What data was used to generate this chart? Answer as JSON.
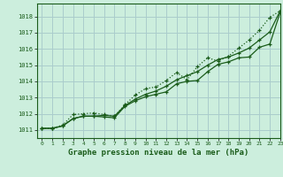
{
  "title": "Graphe pression niveau de la mer (hPa)",
  "bg_color": "#cceedd",
  "grid_color": "#aacccc",
  "line_color": "#1a5c1a",
  "xlim": [
    -0.5,
    23
  ],
  "ylim": [
    1010.5,
    1018.8
  ],
  "yticks": [
    1011,
    1012,
    1013,
    1014,
    1015,
    1016,
    1017,
    1018
  ],
  "xticks": [
    0,
    1,
    2,
    3,
    4,
    5,
    6,
    7,
    8,
    9,
    10,
    11,
    12,
    13,
    14,
    15,
    16,
    17,
    18,
    19,
    20,
    21,
    22,
    23
  ],
  "series1_x": [
    0,
    1,
    2,
    3,
    4,
    5,
    6,
    7,
    8,
    9,
    10,
    11,
    12,
    13,
    14,
    15,
    16,
    17,
    18,
    19,
    20,
    21,
    22,
    23
  ],
  "series1_y": [
    1011.1,
    1011.1,
    1011.25,
    1011.7,
    1011.85,
    1011.85,
    1011.8,
    1011.75,
    1012.45,
    1012.8,
    1013.05,
    1013.2,
    1013.35,
    1013.85,
    1014.0,
    1014.05,
    1014.6,
    1015.05,
    1015.2,
    1015.45,
    1015.5,
    1016.1,
    1016.3,
    1018.25
  ],
  "series2_x": [
    0,
    1,
    2,
    3,
    4,
    5,
    6,
    7,
    8,
    9,
    10,
    11,
    12,
    13,
    14,
    15,
    16,
    17,
    18,
    19,
    20,
    21,
    22,
    23
  ],
  "series2_y": [
    1011.1,
    1011.1,
    1011.25,
    1011.7,
    1011.85,
    1011.85,
    1011.9,
    1011.85,
    1012.5,
    1012.9,
    1013.2,
    1013.4,
    1013.7,
    1014.1,
    1014.35,
    1014.6,
    1015.0,
    1015.35,
    1015.5,
    1015.75,
    1016.05,
    1016.55,
    1017.05,
    1018.35
  ],
  "series3_x": [
    0,
    1,
    2,
    3,
    4,
    5,
    6,
    7,
    8,
    9,
    10,
    11,
    12,
    13,
    14,
    15,
    16,
    17,
    18,
    19,
    20,
    21,
    22,
    23
  ],
  "series3_y": [
    1011.1,
    1011.1,
    1011.3,
    1011.95,
    1012.0,
    1012.05,
    1011.95,
    1011.85,
    1012.55,
    1013.15,
    1013.55,
    1013.65,
    1014.05,
    1014.55,
    1014.1,
    1014.9,
    1015.45,
    1015.25,
    1015.55,
    1016.05,
    1016.55,
    1017.15,
    1017.95,
    1018.35
  ]
}
